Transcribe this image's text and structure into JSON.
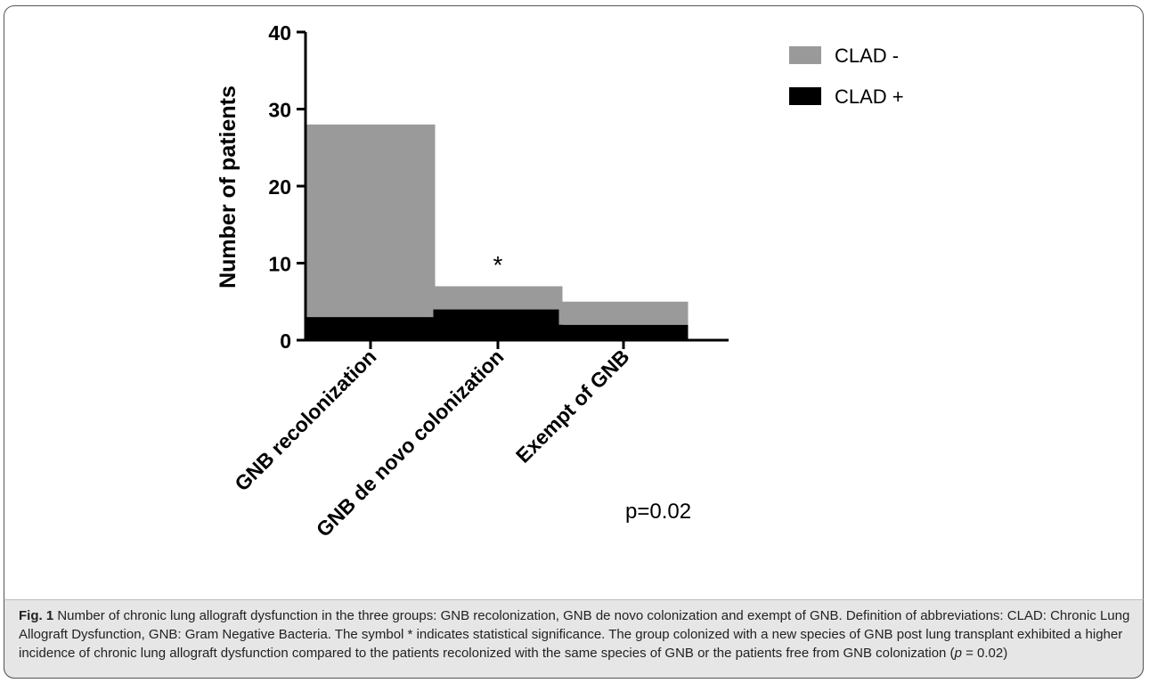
{
  "chart_data": {
    "type": "bar",
    "stacked": true,
    "categories": [
      "GNB recolonization",
      "GNB de novo colonization",
      "Exempt of GNB"
    ],
    "series": [
      {
        "name": "CLAD +",
        "values": [
          3,
          4,
          2
        ],
        "color": "#000000"
      },
      {
        "name": "CLAD -",
        "values": [
          25,
          3,
          3
        ],
        "color": "#9a9a9a"
      }
    ],
    "ylabel": "Number of patients",
    "xlabel": "",
    "ylim": [
      0,
      40
    ],
    "yticks": [
      0,
      10,
      20,
      30,
      40
    ],
    "legend_position": "top-right",
    "annotations": [
      {
        "text": "*",
        "category": "GNB de novo colonization"
      },
      {
        "text": "p=0.02"
      }
    ]
  },
  "caption": {
    "label": "Fig. 1",
    "text_before_p": " Number of chronic lung allograft dysfunction in the three groups: GNB recolonization, GNB de novo colonization and exempt of GNB. Definition of abbreviations: CLAD: Chronic Lung Allograft Dysfunction, GNB: Gram Negative Bacteria. The symbol * indicates statistical significance. The group colonized with a new species of GNB post lung transplant exhibited a higher incidence of chronic lung allograft dysfunction compared to the patients recolonized with the same species of GNB or the patients free from GNB colonization (",
    "p_symbol": "p",
    "text_after_p": " = 0.02)"
  }
}
